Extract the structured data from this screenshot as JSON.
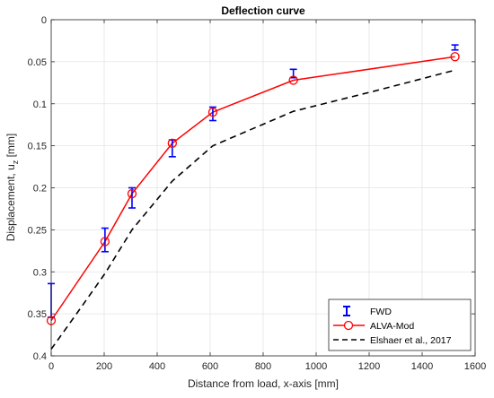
{
  "chart_data": {
    "type": "line",
    "title": "Deflection curve",
    "xlabel": "Distance from load, x-axis [mm]",
    "ylabel": "Displacement, u",
    "ylabel_subscript": "z",
    "ylabel_unit": " [mm]",
    "xlim": [
      0,
      1600
    ],
    "ylim": [
      0,
      0.4
    ],
    "y_reversed": true,
    "grid": true,
    "legend_position": "bottom-right",
    "x_ticks": [
      0,
      200,
      400,
      600,
      800,
      1000,
      1200,
      1400,
      1600
    ],
    "x_tick_labels": [
      "0",
      "200",
      "400",
      "600",
      "800",
      "1000",
      "1200",
      "1400",
      "1600"
    ],
    "y_ticks": [
      0,
      0.05,
      0.1,
      0.15,
      0.2,
      0.25,
      0.3,
      0.35,
      0.4
    ],
    "y_tick_labels": [
      "0",
      "0.05",
      "0.1",
      "0.15",
      "0.2",
      "0.25",
      "0.3",
      "0.35",
      "0.4"
    ],
    "series": [
      {
        "name": "FWD",
        "kind": "errorbar",
        "color": "#0000ff",
        "x": [
          0,
          203,
          305,
          457,
          610,
          914,
          1524
        ],
        "y": [
          0.334,
          0.262,
          0.212,
          0.153,
          0.112,
          0.064,
          0.033
        ],
        "err": [
          0.02,
          0.014,
          0.012,
          0.01,
          0.008,
          0.005,
          0.003
        ]
      },
      {
        "name": "ALVA-Mod",
        "kind": "line-marker",
        "color": "#ff0000",
        "marker": "circle",
        "x": [
          0,
          203,
          305,
          457,
          610,
          914,
          1524
        ],
        "y": [
          0.358,
          0.264,
          0.207,
          0.147,
          0.11,
          0.072,
          0.044
        ]
      },
      {
        "name": "Elshaer et al., 2017",
        "kind": "dashed-line",
        "color": "#000000",
        "x": [
          0,
          100,
          203,
          305,
          457,
          610,
          914,
          1219,
          1524
        ],
        "y": [
          0.392,
          0.348,
          0.302,
          0.25,
          0.192,
          0.15,
          0.109,
          0.085,
          0.06
        ]
      }
    ]
  }
}
